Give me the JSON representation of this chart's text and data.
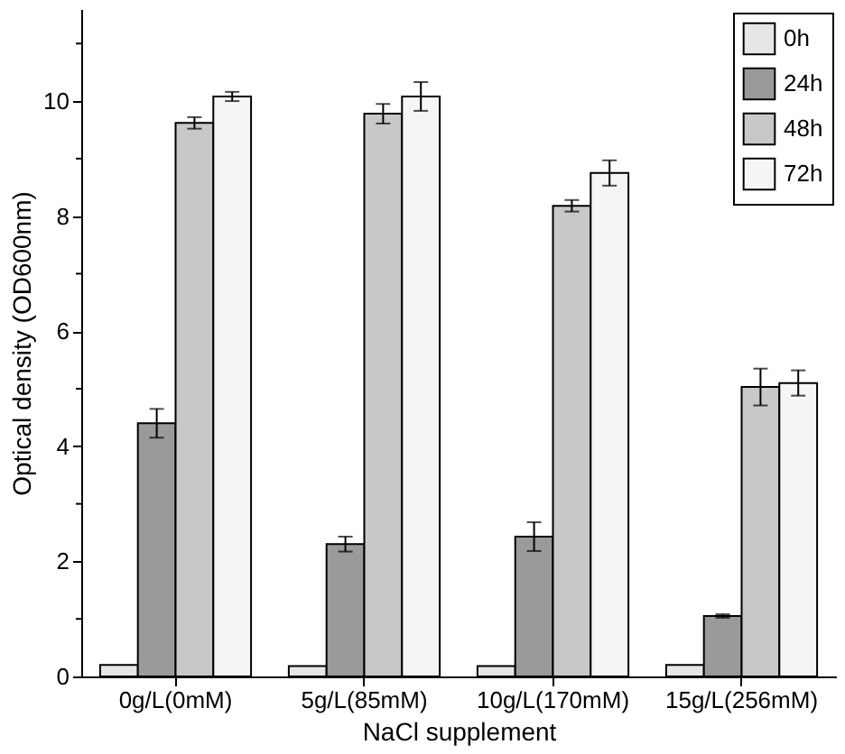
{
  "chart_data": {
    "type": "bar",
    "xlabel": "NaCl supplement",
    "ylabel": "Optical density (OD600nm)",
    "categories": [
      "0g/L(0mM)",
      "5g/L(85mM)",
      "10g/L(170mM)",
      "15g/L(256mM)"
    ],
    "series": [
      {
        "name": "0h",
        "color": "#e6e6e6",
        "values": [
          0.2,
          0.18,
          0.18,
          0.2
        ]
      },
      {
        "name": "24h",
        "color": "#9a9a9a",
        "values": [
          4.4,
          2.3,
          2.43,
          1.05
        ],
        "errors": [
          0.25,
          0.13,
          0.25,
          0.03
        ]
      },
      {
        "name": "48h",
        "color": "#c8c8c8",
        "values": [
          9.62,
          9.78,
          8.18,
          5.03
        ],
        "errors": [
          0.1,
          0.17,
          0.1,
          0.32
        ]
      },
      {
        "name": "72h",
        "color": "#f5f5f5",
        "values": [
          10.08,
          10.08,
          8.75,
          5.1
        ],
        "errors": [
          0.08,
          0.25,
          0.22,
          0.22
        ]
      }
    ],
    "ylim": [
      0,
      11.6
    ],
    "yticks": [
      0,
      {
        "value": 1,
        "label": null
      },
      2,
      {
        "value": 3,
        "label": null
      },
      4,
      {
        "value": 5,
        "label": null
      },
      6,
      {
        "value": 7,
        "label": null
      },
      8,
      {
        "value": 9,
        "label": null
      },
      10,
      {
        "value": 11,
        "label": null
      }
    ],
    "grid": false,
    "legend": "top right"
  }
}
